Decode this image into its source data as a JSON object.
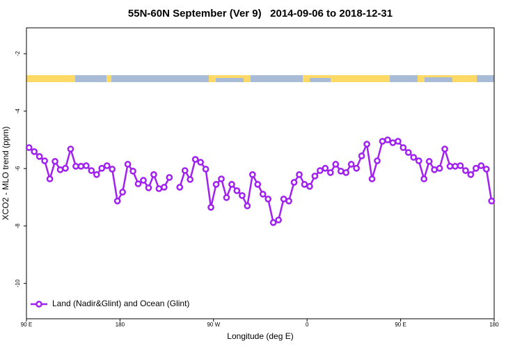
{
  "chart_data": {
    "type": "line",
    "title": "55N-60N September (Ver 9)   2014-09-06 to 2018-12-31",
    "xlabel": "Longitude (deg E)",
    "ylabel": "XCO2 - MLO trend (ppm)",
    "xlim": [
      90,
      540
    ],
    "ylim": [
      -11.23,
      -1.1
    ],
    "xticks": [
      {
        "value": 90,
        "label": "90 E"
      },
      180,
      {
        "value": 270,
        "label": "90 W"
      },
      {
        "value": 360,
        "label": "0"
      },
      {
        "value": 450,
        "label": "90 E"
      },
      {
        "value": 540,
        "label": "180"
      }
    ],
    "yticks": [
      -2,
      -4,
      -6,
      -8,
      -10
    ],
    "legend": "bottomleft",
    "x": [
      92.5,
      97.5,
      102.5,
      107.5,
      112.5,
      117.5,
      122.5,
      127.5,
      132.5,
      137.5,
      142.5,
      147.5,
      152.5,
      157.5,
      162.5,
      167.5,
      172.5,
      177.5,
      182.5,
      187.5,
      192.5,
      197.5,
      202.5,
      207.5,
      212.5,
      217.5,
      222.5,
      227.5,
      232.5,
      237.5,
      242.5,
      247.5,
      252.5,
      257.5,
      262.5,
      267.5,
      272.5,
      277.5,
      282.5,
      287.5,
      292.5,
      297.5,
      302.5,
      307.5,
      312.5,
      317.5,
      322.5,
      327.5,
      332.5,
      337.5,
      342.5,
      347.5,
      352.5,
      357.5,
      362.5,
      367.5,
      372.5,
      377.5,
      382.5,
      387.5,
      392.5,
      397.5,
      402.5,
      407.5,
      412.5,
      417.5,
      422.5,
      427.5,
      432.5,
      437.5,
      442.5,
      447.5,
      452.5,
      457.5,
      462.5,
      467.5,
      472.5,
      477.5,
      482.5,
      487.5,
      492.5,
      497.5,
      502.5,
      507.5,
      512.5,
      517.5,
      522.5,
      527.5,
      532.5,
      537.5
    ],
    "series": [
      {
        "name": "Land (Nadir&Glint) and Ocean (Glint)",
        "color": "#a020f0",
        "values": [
          -5.27,
          -5.41,
          -5.58,
          -5.73,
          -6.36,
          -5.75,
          -6.04,
          -5.99,
          -5.32,
          -5.92,
          -5.92,
          -5.9,
          -6.07,
          -6.21,
          -5.99,
          -5.9,
          -6.02,
          -7.13,
          -6.82,
          -5.85,
          -6.09,
          -6.53,
          -6.41,
          -6.67,
          -6.21,
          -6.7,
          -6.65,
          -6.31,
          null,
          -6.65,
          -6.07,
          -6.38,
          -5.68,
          -5.78,
          -6.02,
          -7.35,
          -6.55,
          -6.36,
          -7.01,
          -6.55,
          -6.77,
          -6.94,
          -7.3,
          -6.21,
          -6.55,
          -6.89,
          -7.06,
          -7.88,
          -7.79,
          -7.06,
          -7.13,
          -6.48,
          -6.21,
          -6.55,
          -6.62,
          -6.26,
          -6.07,
          -5.99,
          -6.14,
          -5.85,
          -6.09,
          -6.14,
          -5.85,
          -5.99,
          -5.56,
          -5.15,
          -6.36,
          -5.73,
          -5.05,
          -5.0,
          -5.1,
          -5.05,
          -5.27,
          -5.44,
          -5.61,
          -5.73,
          -6.36,
          -5.75,
          -6.04,
          -5.99,
          -5.32,
          -5.92,
          -5.92,
          -5.9,
          -6.07,
          -6.21,
          -5.99,
          -5.9,
          -6.02,
          -7.13
        ]
      }
    ]
  }
}
